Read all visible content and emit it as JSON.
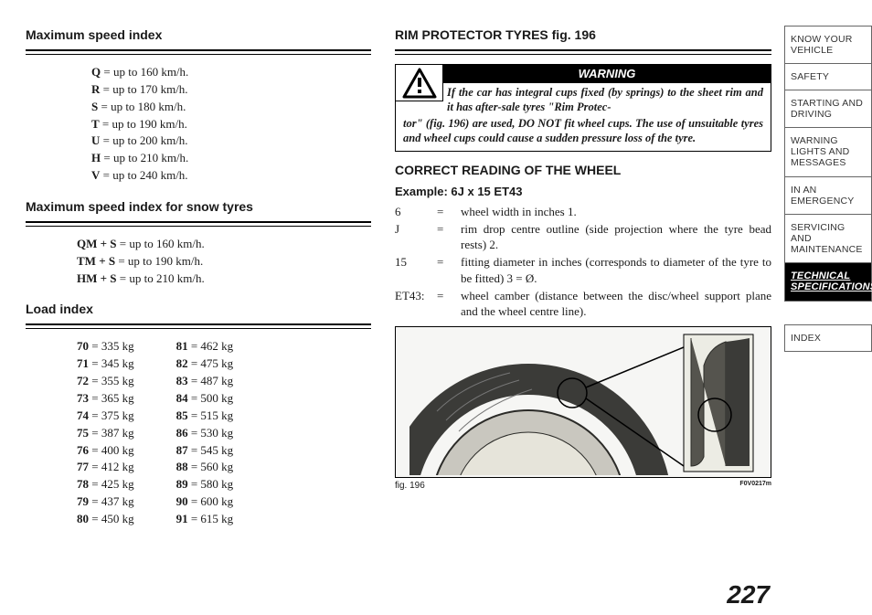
{
  "left": {
    "speed_index": {
      "title": "Maximum speed index",
      "rows": [
        {
          "k": "Q",
          "v": " = up to 160 km/h."
        },
        {
          "k": "R",
          "v": " = up to 170 km/h."
        },
        {
          "k": "S",
          "v": " = up to 180 km/h."
        },
        {
          "k": "T",
          "v": " = up to 190 km/h."
        },
        {
          "k": "U",
          "v": " = up to 200 km/h."
        },
        {
          "k": "H",
          "v": " = up to 210 km/h."
        },
        {
          "k": "V",
          "v": " = up to 240 km/h."
        }
      ]
    },
    "snow_index": {
      "title": "Maximum speed index for snow tyres",
      "rows": [
        {
          "k": "QM + S",
          "v": " = up to 160 km/h."
        },
        {
          "k": "TM + S",
          "v": " = up to 190 km/h."
        },
        {
          "k": "HM + S",
          "v": " = up to 210 km/h."
        }
      ]
    },
    "load_index": {
      "title": "Load index",
      "col1": [
        {
          "k": "70",
          "v": " = 335 kg"
        },
        {
          "k": "71",
          "v": " = 345 kg"
        },
        {
          "k": "72",
          "v": " = 355 kg"
        },
        {
          "k": "73",
          "v": " = 365 kg"
        },
        {
          "k": "74",
          "v": " = 375 kg"
        },
        {
          "k": "75",
          "v": " = 387 kg"
        },
        {
          "k": "76",
          "v": " = 400 kg"
        },
        {
          "k": "77",
          "v": " = 412 kg"
        },
        {
          "k": "78",
          "v": " = 425 kg"
        },
        {
          "k": "79",
          "v": " = 437 kg"
        },
        {
          "k": "80",
          "v": " = 450 kg"
        }
      ],
      "col2": [
        {
          "k": "81",
          "v": " = 462 kg"
        },
        {
          "k": "82",
          "v": " = 475 kg"
        },
        {
          "k": "83",
          "v": " = 487 kg"
        },
        {
          "k": "84",
          "v": " = 500 kg"
        },
        {
          "k": "85",
          "v": " = 515 kg"
        },
        {
          "k": "86",
          "v": " = 530 kg"
        },
        {
          "k": "87",
          "v": " = 545 kg"
        },
        {
          "k": "88",
          "v": " = 560 kg"
        },
        {
          "k": "89",
          "v": " = 580 kg"
        },
        {
          "k": "90",
          "v": " = 600 kg"
        },
        {
          "k": "91",
          "v": " = 615 kg"
        }
      ]
    }
  },
  "right": {
    "rim_title": "RIM PROTECTOR TYRES fig. 196",
    "warning": {
      "label": "WARNING",
      "first": "If the car has integral cups fixed (by springs) to the sheet rim and it has after-sale tyres \"Rim Protec-",
      "rest": "tor\" (fig. 196) are used, DO NOT fit wheel cups. The use of unsuitable tyres and wheel cups could cause a sudden pressure loss of the tyre."
    },
    "correct_reading": {
      "title": "CORRECT READING OF THE WHEEL",
      "example": "Example: 6J x 15 ET43",
      "defs": [
        {
          "term": "6",
          "def": "wheel width in inches 1."
        },
        {
          "term": "J",
          "def": "rim drop centre outline (side projection where the tyre bead rests) 2."
        },
        {
          "term": "15",
          "def": "fitting diameter in inches (corresponds to diameter of the tyre to be fitted) 3 = Ø."
        },
        {
          "term": "ET43:",
          "def": "wheel camber (distance between the disc/wheel support plane and the wheel centre line)."
        }
      ]
    },
    "figure": {
      "caption": "fig. 196",
      "code": "F0V0217m"
    }
  },
  "sidebar": {
    "tabs": [
      "KNOW YOUR VEHICLE",
      "SAFETY",
      "STARTING AND DRIVING",
      "WARNING LIGHTS AND MESSAGES",
      "IN AN EMERGENCY",
      "SERVICING AND MAINTENANCE",
      "TECHNICAL SPECIFICATIONS",
      "INDEX"
    ],
    "active_index": 6
  },
  "page_number": "227"
}
